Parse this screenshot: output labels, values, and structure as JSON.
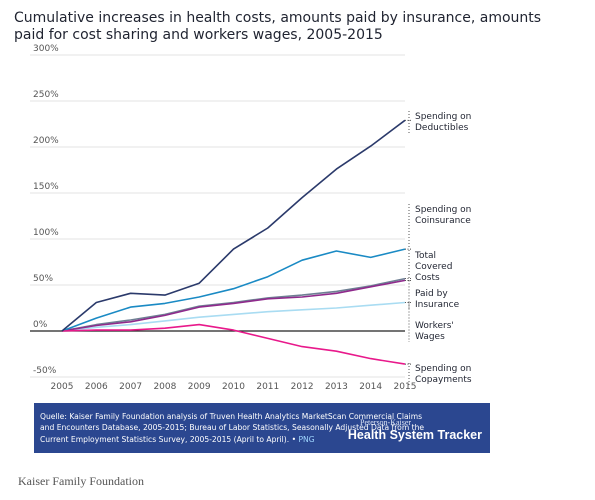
{
  "chart_data": {
    "type": "line",
    "title": "Cumulative increases in health costs, amounts paid by insurance, amounts paid for cost sharing and workers wages, 2005-2015",
    "xlabel": "",
    "ylabel": "",
    "x": [
      "2005",
      "2006",
      "2007",
      "2008",
      "2009",
      "2010",
      "2011",
      "2012",
      "2013",
      "2014",
      "2015"
    ],
    "yticks": [
      "300%",
      "250%",
      "200%",
      "150%",
      "100%",
      "50%",
      "0%",
      "-50%"
    ],
    "ylim": [
      -50,
      300
    ],
    "grid": true,
    "series": [
      {
        "name": "Spending on Deductibles",
        "label_lines": [
          "Spending on",
          "Deductibles"
        ],
        "color": "#2b3a6b",
        "values": [
          0,
          31,
          41,
          39,
          52,
          89,
          112,
          145,
          176,
          201,
          229
        ]
      },
      {
        "name": "Spending on Coinsurance",
        "label_lines": [
          "Spending on",
          "Coinsurance"
        ],
        "color": "#1a8ac4",
        "values": [
          0,
          14,
          26,
          30,
          37,
          46,
          59,
          77,
          87,
          80,
          89
        ]
      },
      {
        "name": "Total Covered Costs",
        "label_lines": [
          "Total",
          "Covered",
          "Costs"
        ],
        "color": "#6e7f93",
        "values": [
          0,
          7,
          12,
          18,
          27,
          31,
          36,
          39,
          43,
          49,
          57
        ]
      },
      {
        "name": "Paid by Insurance",
        "label_lines": [
          "Paid by",
          "Insurance"
        ],
        "color": "#8f2a8c",
        "values": [
          0,
          6,
          10,
          17,
          26,
          30,
          35,
          37,
          41,
          48,
          55
        ]
      },
      {
        "name": "Workers' Wages",
        "label_lines": [
          "Workers'",
          "Wages"
        ],
        "color": "#a9dcf2",
        "values": [
          0,
          4,
          7,
          11,
          15,
          18,
          21,
          23,
          25,
          28,
          31
        ]
      },
      {
        "name": "Spending on Copayments",
        "label_lines": [
          "Spending on",
          "Copayments"
        ],
        "color": "#e8198b",
        "values": [
          0,
          1,
          1,
          3,
          7,
          1,
          -8,
          -17,
          -22,
          -30,
          -36
        ]
      }
    ]
  },
  "source": {
    "text": "Quelle: Kaiser Family Foundation analysis of Truven Health Analytics MarketScan Commercial Claims and Encounters Database, 2005-2015; Bureau of Labor Statistics, Seasonally Adjusted Data from the Current Employment Statistics Survey, 2005-2015 (April to April).",
    "separator": " • ",
    "png_label": "PNG"
  },
  "brand": {
    "top": "Peterson-Kaiser",
    "main": "Health System Tracker"
  },
  "credit": "Kaiser Family Foundation"
}
